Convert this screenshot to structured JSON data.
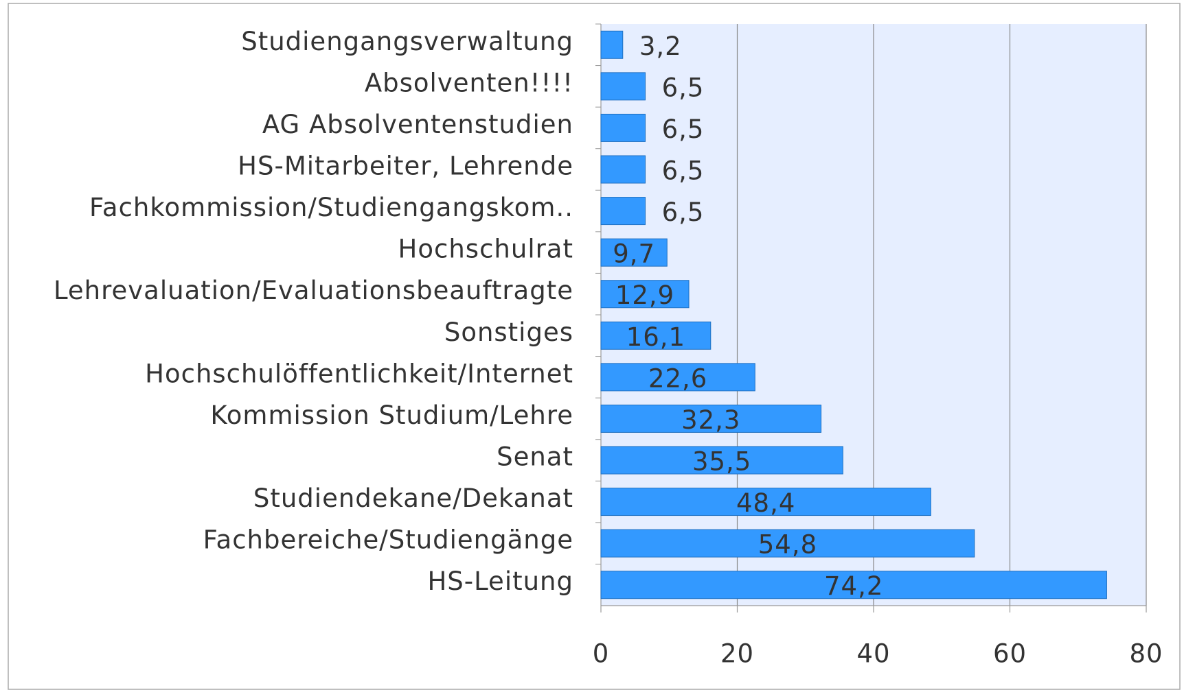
{
  "chart_data": {
    "type": "hbar",
    "categories": [
      "Studiengangsverwaltung",
      "Absolventen!!!!",
      "AG Absolventenstudien",
      "HS-Mitarbeiter, Lehrende",
      "Fachkommission/Studiengangskom..",
      "Hochschulrat",
      "Lehrevaluation/Evaluationsbeauftragte",
      "Sonstiges",
      "Hochschulöffentlichkeit/Internet",
      "Kommission Studium/Lehre",
      "Senat",
      "Studiendekane/Dekanat",
      "Fachbereiche/Studiengänge",
      "HS-Leitung"
    ],
    "values": [
      3.2,
      6.5,
      6.5,
      6.5,
      6.5,
      9.7,
      12.9,
      16.1,
      22.6,
      32.3,
      35.5,
      48.4,
      54.8,
      74.2
    ],
    "value_labels": [
      "3,2",
      "6,5",
      "6,5",
      "6,5",
      "6,5",
      "9,7",
      "12,9",
      "16,1",
      "22,6",
      "32,3",
      "35,5",
      "48,4",
      "54,8",
      "74,2"
    ],
    "color": "#3399ff",
    "xlim": [
      0,
      80
    ],
    "xticks": [
      0,
      20,
      40,
      60,
      80
    ],
    "grid": true
  }
}
